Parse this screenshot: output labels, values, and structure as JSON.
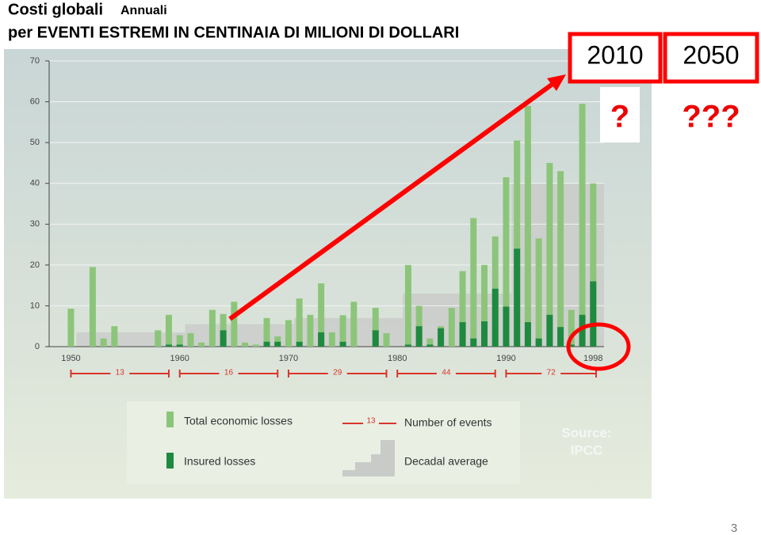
{
  "slide": {
    "title_main": "Costi globali",
    "title_sub": "Annuali",
    "title_line2": "per EVENTI ESTREMI IN CENTINAIA DI MILIONI DI DOLLARI",
    "box_left": "2010",
    "box_right": "2050",
    "question_left": "?",
    "question_right": "???",
    "source_line1": "Source:",
    "source_line2": "IPCC",
    "page_number": "3"
  },
  "chart_data": {
    "type": "bar",
    "x": [
      1950,
      1952,
      1953,
      1954,
      1958,
      1959,
      1960,
      1961,
      1962,
      1963,
      1964,
      1965,
      1966,
      1967,
      1968,
      1969,
      1970,
      1971,
      1972,
      1973,
      1974,
      1975,
      1976,
      1978,
      1979,
      1981,
      1982,
      1983,
      1984,
      1985,
      1986,
      1987,
      1988,
      1989,
      1990,
      1991,
      1992,
      1993,
      1994,
      1995,
      1996,
      1997,
      1998
    ],
    "series": [
      {
        "name": "Total economic losses",
        "color": "#8cc57a",
        "values": [
          9.3,
          19.5,
          2,
          5,
          4,
          7.8,
          2.8,
          3.3,
          1,
          9,
          8,
          11,
          1,
          0.5,
          7,
          2.5,
          6.5,
          11.8,
          7.8,
          15.5,
          3.5,
          7.7,
          11,
          9.5,
          3.3,
          20,
          10,
          2,
          5,
          9.5,
          18.5,
          31.5,
          20,
          27,
          41.5,
          50.5,
          59,
          26.5,
          45,
          43,
          9,
          59.5,
          40
        ]
      },
      {
        "name": "Insured losses",
        "color": "#1e8a3f",
        "values": [
          0,
          0,
          0,
          0,
          0,
          0.5,
          0.5,
          0,
          0,
          0,
          4,
          0,
          0,
          0,
          1.2,
          1.2,
          0,
          1.2,
          0,
          3.5,
          0,
          1.2,
          0,
          4,
          0,
          0.5,
          5,
          0.5,
          4.5,
          0,
          6,
          2,
          6.2,
          14.2,
          9.8,
          24,
          6,
          2,
          7.8,
          4.8,
          0.5,
          7.8,
          16
        ]
      }
    ],
    "decadal_average": {
      "name": "Decadal average",
      "color": "#c9cbc8",
      "decades": [
        1950,
        1960,
        1970,
        1980,
        1990
      ],
      "values": [
        3.5,
        5.5,
        7,
        13,
        40
      ]
    },
    "events": {
      "name": "Number of events",
      "color": "#d9352b",
      "counts": [
        13,
        16,
        29,
        44,
        72
      ],
      "legend_sample": 13
    },
    "xlim": [
      1948,
      1999
    ],
    "xticks": [
      1950,
      1960,
      1970,
      1980,
      1990,
      1998
    ],
    "ylim": [
      0,
      70
    ],
    "yticks": [
      0,
      10,
      20,
      30,
      40,
      50,
      60,
      70
    ],
    "grid": true
  }
}
